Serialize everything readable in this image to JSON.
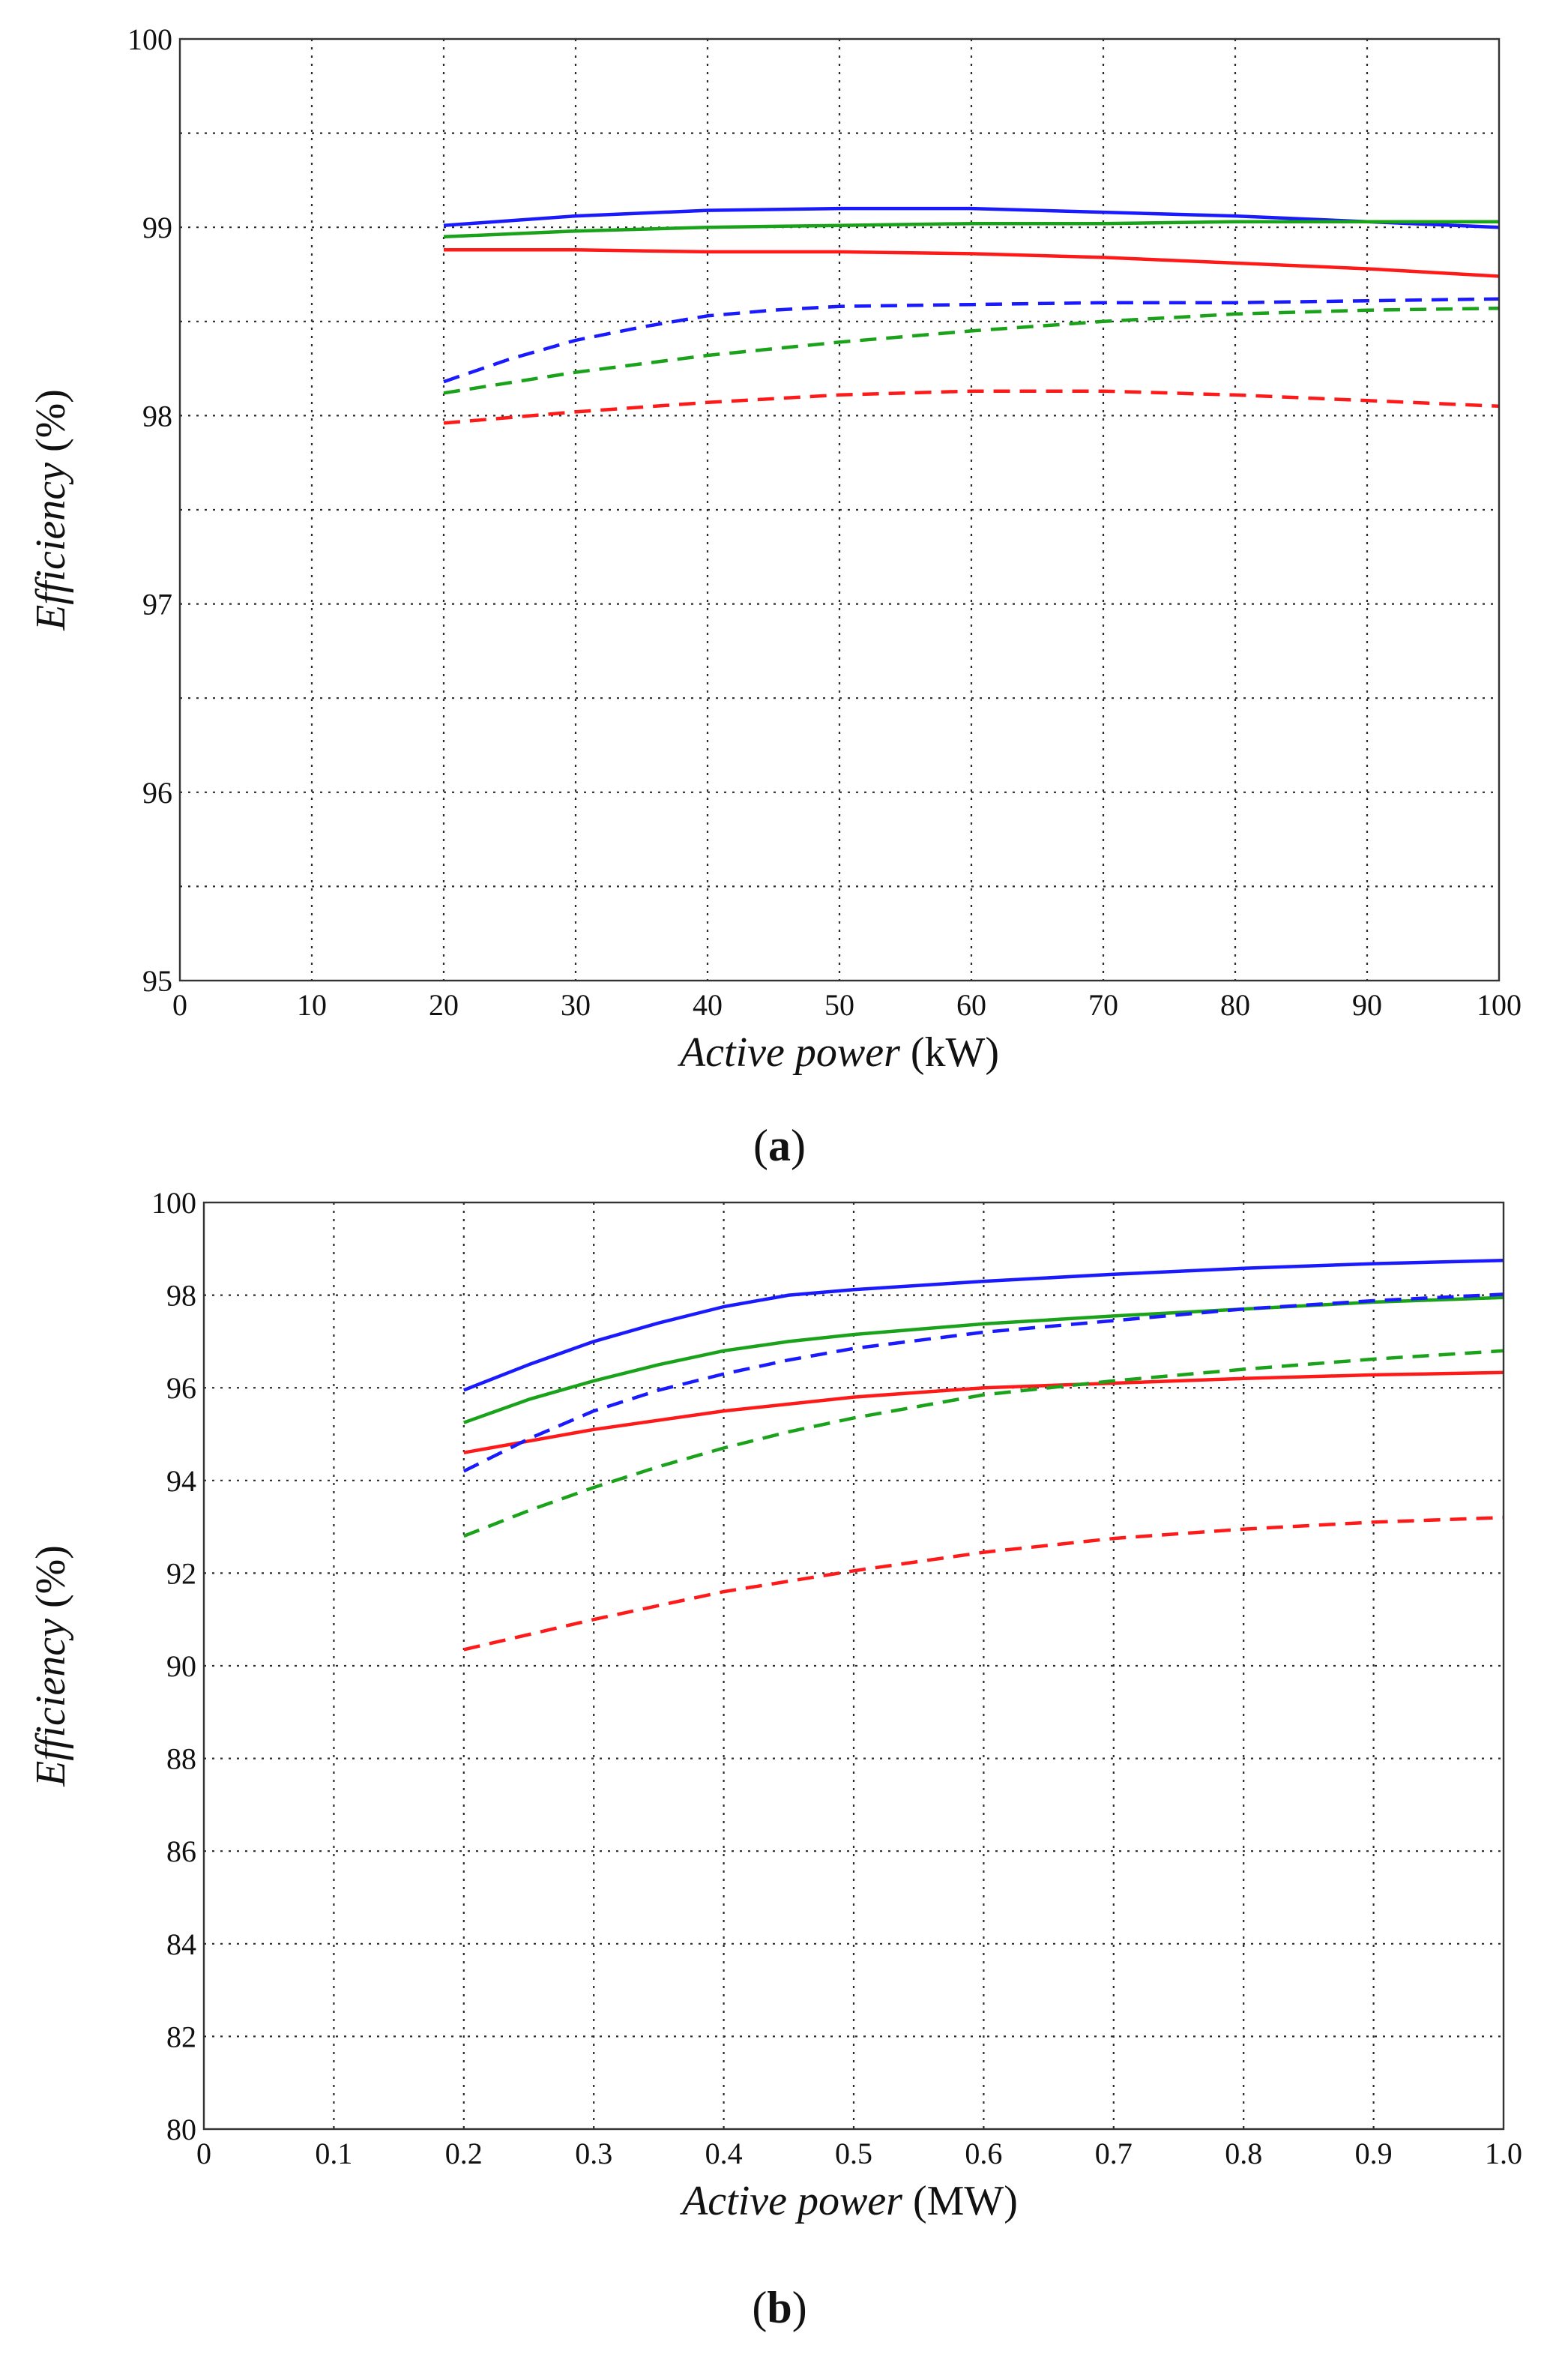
{
  "chart_data": [
    {
      "type": "line",
      "panel_label": "a",
      "xlabel_italic": "Active power",
      "xlabel_unit": "(kW)",
      "ylabel_italic": "Efficiency",
      "ylabel_unit": "(%)",
      "xlim": [
        0,
        100
      ],
      "ylim": [
        95,
        100
      ],
      "x_ticks": [
        0,
        10,
        20,
        30,
        40,
        50,
        60,
        70,
        80,
        90,
        100
      ],
      "x_tick_labels": [
        "0",
        "10",
        "20",
        "30",
        "40",
        "50",
        "60",
        "70",
        "80",
        "90",
        "100"
      ],
      "y_ticks": [
        95,
        96,
        97,
        98,
        99,
        100
      ],
      "y_tick_labels": [
        "95",
        "96",
        "97",
        "98",
        "99",
        "100"
      ],
      "y_grid": [
        95.5,
        96,
        96.5,
        97,
        97.5,
        98,
        98.5,
        99,
        99.5
      ],
      "grid": true,
      "series": [
        {
          "name": "blue-solid",
          "color": "#1a1aff",
          "dash": "solid",
          "x": [
            20,
            30,
            40,
            50,
            60,
            70,
            80,
            90,
            100
          ],
          "y": [
            99.01,
            99.06,
            99.09,
            99.1,
            99.1,
            99.08,
            99.06,
            99.03,
            99.0
          ]
        },
        {
          "name": "green-solid",
          "color": "#1aa31a",
          "dash": "solid",
          "x": [
            20,
            30,
            40,
            50,
            60,
            70,
            80,
            90,
            100
          ],
          "y": [
            98.95,
            98.98,
            99.0,
            99.01,
            99.02,
            99.02,
            99.03,
            99.03,
            99.03
          ]
        },
        {
          "name": "red-solid",
          "color": "#ff1a1a",
          "dash": "solid",
          "x": [
            20,
            30,
            40,
            50,
            60,
            70,
            80,
            90,
            100
          ],
          "y": [
            98.88,
            98.88,
            98.87,
            98.87,
            98.86,
            98.84,
            98.81,
            98.78,
            98.74
          ]
        },
        {
          "name": "blue-dashed",
          "color": "#1a1aff",
          "dash": "dashed",
          "x": [
            20,
            25,
            30,
            35,
            40,
            45,
            50,
            60,
            70,
            80,
            90,
            100
          ],
          "y": [
            98.18,
            98.3,
            98.4,
            98.47,
            98.53,
            98.56,
            98.58,
            98.59,
            98.6,
            98.6,
            98.61,
            98.62
          ]
        },
        {
          "name": "green-dashed",
          "color": "#1aa31a",
          "dash": "dashed",
          "x": [
            20,
            30,
            40,
            50,
            60,
            70,
            80,
            90,
            100
          ],
          "y": [
            98.12,
            98.23,
            98.32,
            98.39,
            98.45,
            98.5,
            98.54,
            98.56,
            98.57
          ]
        },
        {
          "name": "red-dashed",
          "color": "#ff1a1a",
          "dash": "dashed",
          "x": [
            20,
            30,
            40,
            50,
            60,
            70,
            80,
            90,
            100
          ],
          "y": [
            97.96,
            98.02,
            98.07,
            98.11,
            98.13,
            98.13,
            98.11,
            98.08,
            98.05
          ]
        }
      ]
    },
    {
      "type": "line",
      "panel_label": "b",
      "xlabel_italic": "Active power",
      "xlabel_unit": "(MW)",
      "ylabel_italic": "Efficiency",
      "ylabel_unit": "(%)",
      "xlim": [
        0,
        1
      ],
      "ylim": [
        80,
        100
      ],
      "x_ticks": [
        0,
        0.1,
        0.2,
        0.3,
        0.4,
        0.5,
        0.6,
        0.7,
        0.8,
        0.9,
        1.0
      ],
      "x_tick_labels": [
        "0",
        "0.1",
        "0.2",
        "0.3",
        "0.4",
        "0.5",
        "0.6",
        "0.7",
        "0.8",
        "0.9",
        "1.0"
      ],
      "y_ticks": [
        80,
        82,
        84,
        86,
        88,
        90,
        92,
        94,
        96,
        98,
        100
      ],
      "y_tick_labels": [
        "80",
        "82",
        "84",
        "86",
        "88",
        "90",
        "92",
        "94",
        "96",
        "98",
        "100"
      ],
      "y_grid": [
        82,
        84,
        86,
        88,
        90,
        92,
        94,
        96,
        98
      ],
      "grid": true,
      "series": [
        {
          "name": "blue-solid",
          "color": "#1a1aff",
          "dash": "solid",
          "x": [
            0.2,
            0.25,
            0.3,
            0.35,
            0.4,
            0.45,
            0.5,
            0.6,
            0.7,
            0.8,
            0.9,
            1.0
          ],
          "y": [
            95.95,
            96.5,
            97.0,
            97.4,
            97.75,
            98.0,
            98.12,
            98.3,
            98.45,
            98.58,
            98.68,
            98.75
          ]
        },
        {
          "name": "green-solid",
          "color": "#1aa31a",
          "dash": "solid",
          "x": [
            0.2,
            0.25,
            0.3,
            0.35,
            0.4,
            0.45,
            0.5,
            0.6,
            0.7,
            0.8,
            0.9,
            1.0
          ],
          "y": [
            95.25,
            95.75,
            96.15,
            96.5,
            96.8,
            97.0,
            97.15,
            97.38,
            97.55,
            97.7,
            97.85,
            97.95
          ]
        },
        {
          "name": "red-solid",
          "color": "#ff1a1a",
          "dash": "solid",
          "x": [
            0.2,
            0.3,
            0.4,
            0.5,
            0.6,
            0.7,
            0.8,
            0.9,
            1.0
          ],
          "y": [
            94.6,
            95.1,
            95.5,
            95.8,
            96.0,
            96.1,
            96.2,
            96.28,
            96.33
          ]
        },
        {
          "name": "blue-dashed",
          "color": "#1a1aff",
          "dash": "dashed",
          "x": [
            0.2,
            0.25,
            0.3,
            0.35,
            0.4,
            0.45,
            0.5,
            0.6,
            0.7,
            0.8,
            0.9,
            1.0
          ],
          "y": [
            94.2,
            94.9,
            95.5,
            95.95,
            96.3,
            96.6,
            96.85,
            97.2,
            97.45,
            97.7,
            97.88,
            98.02
          ]
        },
        {
          "name": "green-dashed",
          "color": "#1aa31a",
          "dash": "dashed",
          "x": [
            0.2,
            0.25,
            0.3,
            0.35,
            0.4,
            0.45,
            0.5,
            0.6,
            0.7,
            0.8,
            0.9,
            1.0
          ],
          "y": [
            92.8,
            93.35,
            93.85,
            94.3,
            94.7,
            95.05,
            95.35,
            95.85,
            96.15,
            96.4,
            96.62,
            96.8
          ]
        },
        {
          "name": "red-dashed",
          "color": "#ff1a1a",
          "dash": "dashed",
          "x": [
            0.2,
            0.3,
            0.4,
            0.5,
            0.6,
            0.7,
            0.8,
            0.9,
            1.0
          ],
          "y": [
            90.35,
            91.0,
            91.6,
            92.05,
            92.45,
            92.75,
            92.95,
            93.1,
            93.2
          ]
        }
      ]
    }
  ]
}
